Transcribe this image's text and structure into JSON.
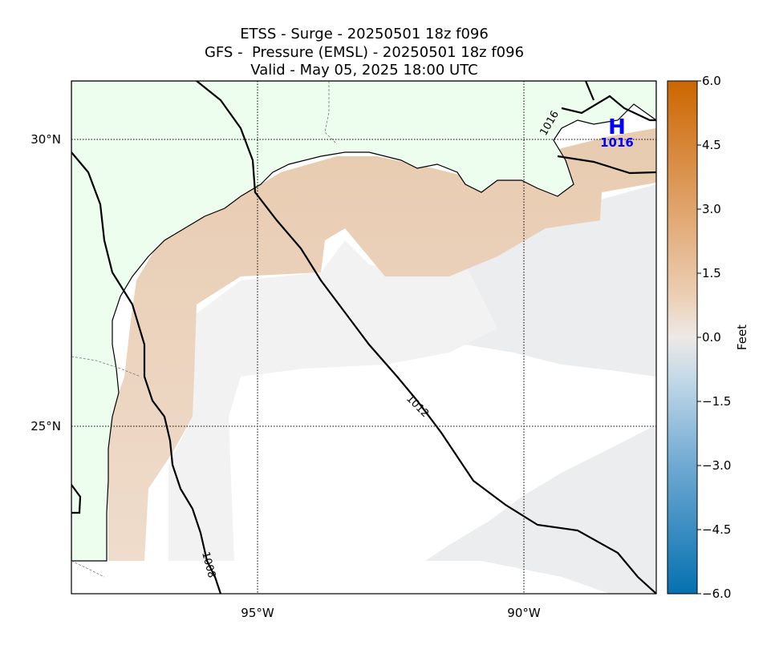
{
  "title": {
    "line1": "ETSS - Surge - 20250501 18z f096",
    "line2": "GFS -  Pressure (EMSL) - 20250501 18z f096",
    "line3": "Valid - May 05, 2025 18:00 UTC"
  },
  "map": {
    "lat_ticks": [
      "30°N",
      "25°N"
    ],
    "lon_ticks": [
      "95°W",
      "90°W"
    ],
    "land_color": "#edfdee",
    "positive_surge_color": "#eccfb5",
    "neutral_color": "#ebedef"
  },
  "isobars": [
    {
      "label": "1008",
      "value": 1008
    },
    {
      "label": "1012",
      "value": 1012
    },
    {
      "label": "1016",
      "value": 1016
    }
  ],
  "pressure_center": {
    "type": "H",
    "value": "1016",
    "color": "#0000ff"
  },
  "colorbar": {
    "label": "Feet",
    "ticks": [
      "6.0",
      "4.5",
      "3.0",
      "1.5",
      "0.0",
      "−1.5",
      "−3.0",
      "−4.5",
      "−6.0"
    ],
    "min": -6.0,
    "max": 6.0,
    "colors": {
      "high": "#cc6600",
      "mid": "#ede9e6",
      "low": "#0571b0"
    }
  }
}
